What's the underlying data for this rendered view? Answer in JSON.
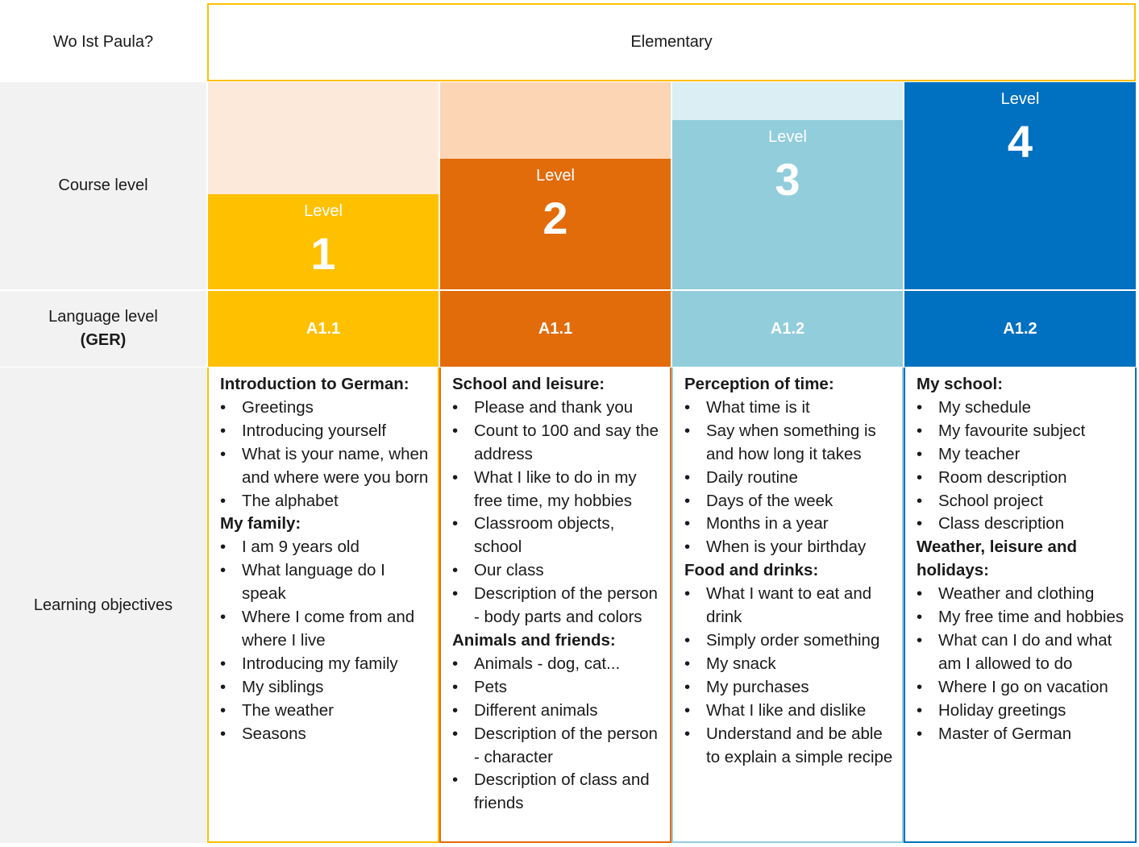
{
  "title_row": {
    "label": "Wo Ist Paula?",
    "value": "Elementary"
  },
  "row_labels": {
    "course_level": "Course level",
    "language_level_line1": "Language level",
    "language_level_line2": "(GER)",
    "learning_objectives": "Learning objectives"
  },
  "colors": {
    "level1": "#ffc000",
    "level2": "#e26b0a",
    "level3": "#92cddc",
    "level4": "#0070c0",
    "level1_light": "#fde9d9",
    "level2_light": "#fcd5b4",
    "level3_light": "#daeef3",
    "header_gray": "#f2f2f2"
  },
  "levels": [
    {
      "word": "Level",
      "number": "1",
      "ger": "A1.1",
      "sections": [
        {
          "title": "Introduction to German:",
          "items": [
            "Greetings",
            "Introducing yourself",
            "What is your name, when and where were you born",
            "The alphabet"
          ]
        },
        {
          "title": "My family:",
          "items": [
            "I am 9 years old",
            "What language do I speak",
            "Where I come from and where I live",
            "Introducing my family",
            "My siblings",
            "The weather",
            "Seasons"
          ]
        }
      ]
    },
    {
      "word": "Level",
      "number": "2",
      "ger": "A1.1",
      "sections": [
        {
          "title": "School and leisure:",
          "items": [
            "Please and thank you",
            "Count to 100 and say the address",
            "What I like to do in my free time, my hobbies",
            "Classroom objects, school",
            "Our class",
            "Description of the person - body parts and colors"
          ]
        },
        {
          "title": "Animals and friends:",
          "items": [
            "Animals - dog, cat...",
            "Pets",
            "Different animals",
            "Description of the person - character",
            "Description of class and friends"
          ]
        }
      ]
    },
    {
      "word": "Level",
      "number": "3",
      "ger": "A1.2",
      "sections": [
        {
          "title": "Perception of time:",
          "items": [
            "What time is it",
            "Say when something is and how long it takes",
            "Daily routine",
            "Days of the week",
            "Months in a year",
            "When is your birthday"
          ]
        },
        {
          "title": "Food and drinks:",
          "items": [
            "What I want to eat and drink",
            "Simply order something",
            "My snack",
            "My purchases",
            "What I like and dislike",
            "Understand and be able to explain a simple recipe"
          ]
        }
      ]
    },
    {
      "word": "Level",
      "number": "4",
      "ger": "A1.2",
      "sections": [
        {
          "title": "My school:",
          "items": [
            "My schedule",
            "My favourite subject",
            "My teacher",
            "Room description",
            "School project",
            "Class description"
          ]
        },
        {
          "title": "Weather, leisure and holidays:",
          "items": [
            "Weather and clothing",
            "My free time and hobbies",
            "What can I do and what am I allowed to do",
            "Where I go on vacation",
            "Holiday greetings",
            "Master of German"
          ]
        }
      ]
    }
  ]
}
